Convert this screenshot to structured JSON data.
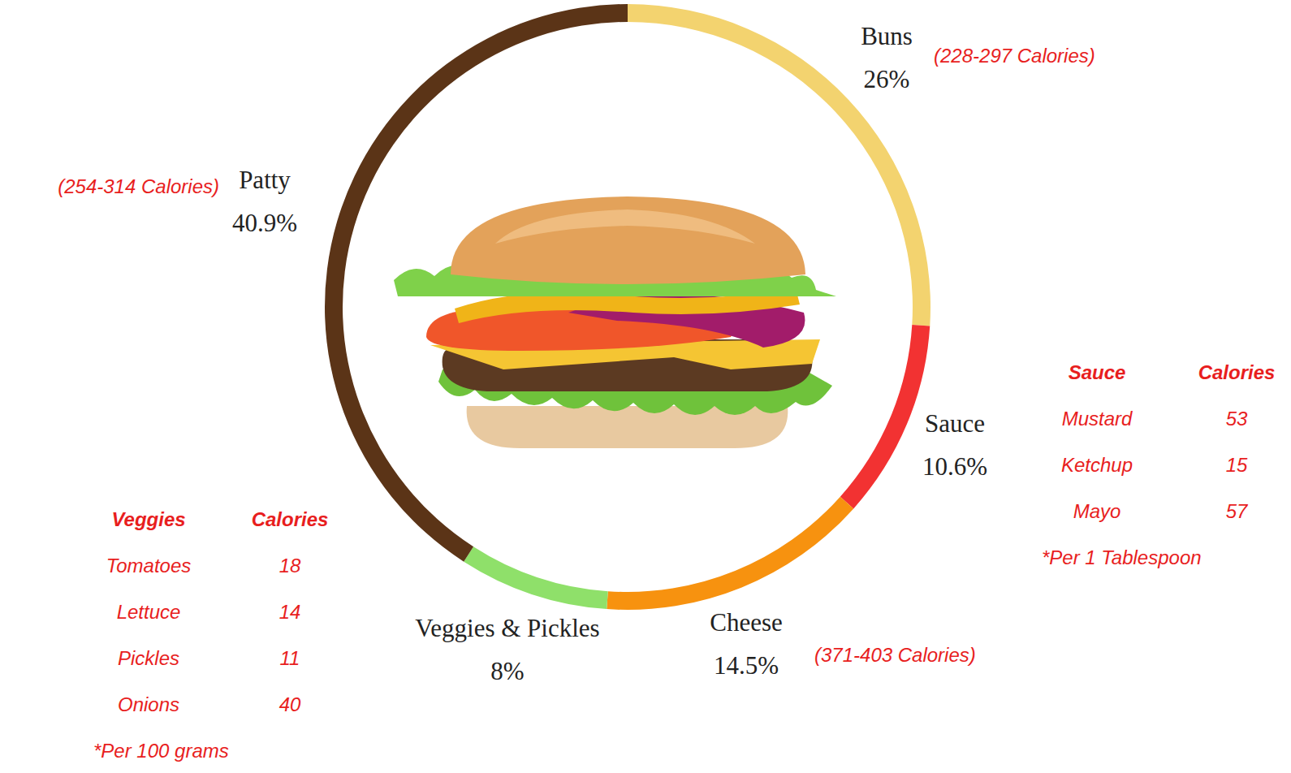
{
  "chart_data": {
    "type": "donut",
    "categories": [
      "Buns",
      "Sauce",
      "Cheese",
      "Veggies & Pickles",
      "Patty"
    ],
    "values": [
      26,
      10.6,
      14.5,
      8,
      40.9
    ],
    "value_labels": [
      "26%",
      "10.6%",
      "14.5%",
      "8%",
      "40.9%"
    ],
    "colors": [
      "#f3d36f",
      "#f23232",
      "#f7920f",
      "#8fe06a",
      "#5b3417"
    ],
    "data_labels": true,
    "annotations": [
      {
        "category": "Buns",
        "text": "(228-297 Calories)"
      },
      {
        "category": "Patty",
        "text": "(254-314 Calories)"
      },
      {
        "category": "Cheese",
        "text": "(371-403 Calories)"
      }
    ],
    "tables": [
      {
        "headers": [
          "Sauce",
          "Calories"
        ],
        "rows": [
          [
            "Mustard",
            53
          ],
          [
            "Ketchup",
            15
          ],
          [
            "Mayo",
            57
          ]
        ],
        "note": "*Per 1 Tablespoon"
      },
      {
        "headers": [
          "Veggies",
          "Calories"
        ],
        "rows": [
          [
            "Tomatoes",
            18
          ],
          [
            "Lettuce",
            14
          ],
          [
            "Pickles",
            11
          ],
          [
            "Onions",
            40
          ]
        ],
        "note": "*Per 100 grams"
      }
    ]
  }
}
